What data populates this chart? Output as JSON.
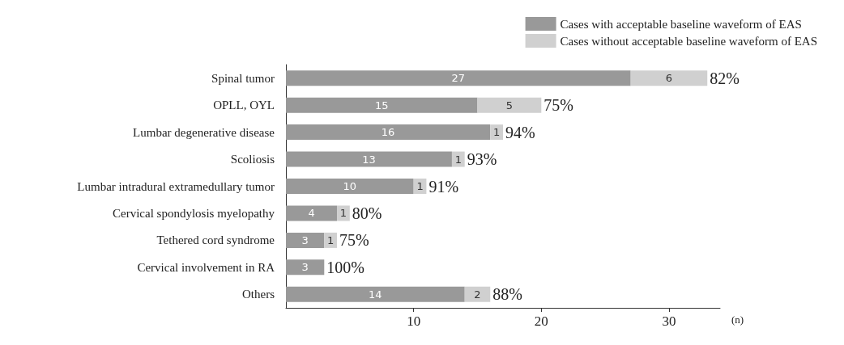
{
  "chart_data": {
    "type": "bar",
    "orientation": "horizontal",
    "stacked": true,
    "categories": [
      "Spinal tumor",
      "OPLL, OYL",
      "Lumbar degenerative disease",
      "Scoliosis",
      "Lumbar intradural extramedullary tumor",
      "Cervical spondylosis myelopathy",
      "Tethered cord syndrome",
      "Cervical involvement in RA",
      "Others"
    ],
    "series": [
      {
        "name": "Cases with acceptable baseline waveform of EAS",
        "color": "#999999",
        "values": [
          27,
          15,
          16,
          13,
          10,
          4,
          3,
          3,
          14
        ]
      },
      {
        "name": "Cases without acceptable baseline waveform of EAS",
        "color": "#d0d0d0",
        "values": [
          6,
          5,
          1,
          1,
          1,
          1,
          1,
          null,
          2
        ]
      }
    ],
    "data_labels": true,
    "annotations": [
      {
        "text": "82%",
        "x": 33,
        "y": "Spinal tumor"
      },
      {
        "text": "75%",
        "x": 20,
        "y": "OPLL, OYL"
      },
      {
        "text": "94%",
        "x": 17,
        "y": "Lumbar degenerative disease"
      },
      {
        "text": "93%",
        "x": 14,
        "y": "Scoliosis"
      },
      {
        "text": "91%",
        "x": 11,
        "y": "Lumbar intradural extramedullary tumor"
      },
      {
        "text": "80%",
        "x": 5,
        "y": "Cervical spondylosis myelopathy"
      },
      {
        "text": "75%",
        "x": 4,
        "y": "Tethered cord syndrome"
      },
      {
        "text": "100%",
        "x": 3,
        "y": "Cervical involvement in RA"
      },
      {
        "text": "88%",
        "x": 16,
        "y": "Others"
      }
    ],
    "xlabel": "(n)",
    "xlim": [
      0,
      34
    ],
    "xticks": [
      10,
      20,
      30
    ],
    "grid": false,
    "legend": "top right"
  }
}
